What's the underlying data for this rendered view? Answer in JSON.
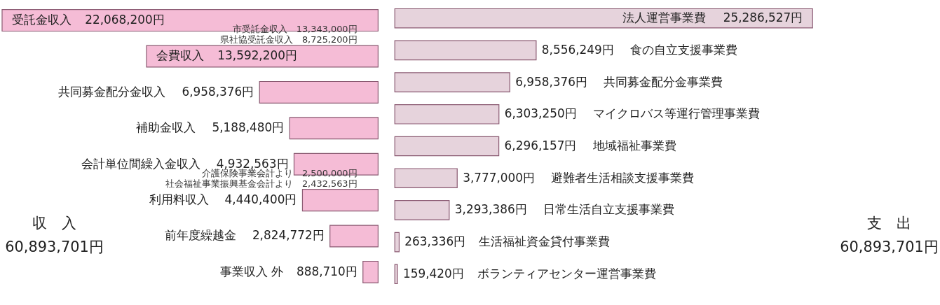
{
  "chart_data": [
    {
      "type": "bar",
      "orientation": "horizontal",
      "color": "#f5bcd6",
      "categories": [
        "受託金収入",
        "会費収入",
        "共同募金配分金収入",
        "補助金収入",
        "会計単位間繰入金収入",
        "利用料収入",
        "前年度繰越金",
        "事業収入 外"
      ],
      "values": [
        22068200,
        13592200,
        6958376,
        5188480,
        4932563,
        4440400,
        2824772,
        888710
      ],
      "value_labels": [
        "22,068,200円",
        "13,592,200円",
        "6,958,376円",
        "5,188,480円",
        "4,932,563円",
        "4,440,400円",
        "2,824,772円",
        "888,710円"
      ],
      "annotations": [
        "市受託金収入　13,343,000円",
        "県社協受託金収入　8,725,200円",
        "介護保険事業会計より　2,500,000円",
        "社会福祉事業振興基金会計より　2,432,563円",
        "収　入",
        "60,893,701円"
      ]
    },
    {
      "type": "bar",
      "orientation": "horizontal",
      "color": "#e6d3dc",
      "categories": [
        "法人運営事業費",
        "食の自立支援事業費",
        "共同募金配分金事業費",
        "マイクロバス等運行管理事業費",
        "地域福祉事業費",
        "避難者生活相談支援事業費",
        "日常生活自立支援事業費",
        "生活福祉資金貸付事業費",
        "ボランティアセンター運営事業費"
      ],
      "values": [
        25286527,
        8556249,
        6958376,
        6303250,
        6296157,
        3777000,
        3293386,
        263336,
        159420
      ],
      "value_labels": [
        "25,286,527円",
        "8,556,249円",
        "6,958,376円",
        "6,303,250円",
        "6,296,157円",
        "3,777,000円",
        "3,293,386円",
        "263,336円",
        "159,420円"
      ],
      "annotations": [
        "支　出",
        "60,893,701円"
      ]
    }
  ]
}
